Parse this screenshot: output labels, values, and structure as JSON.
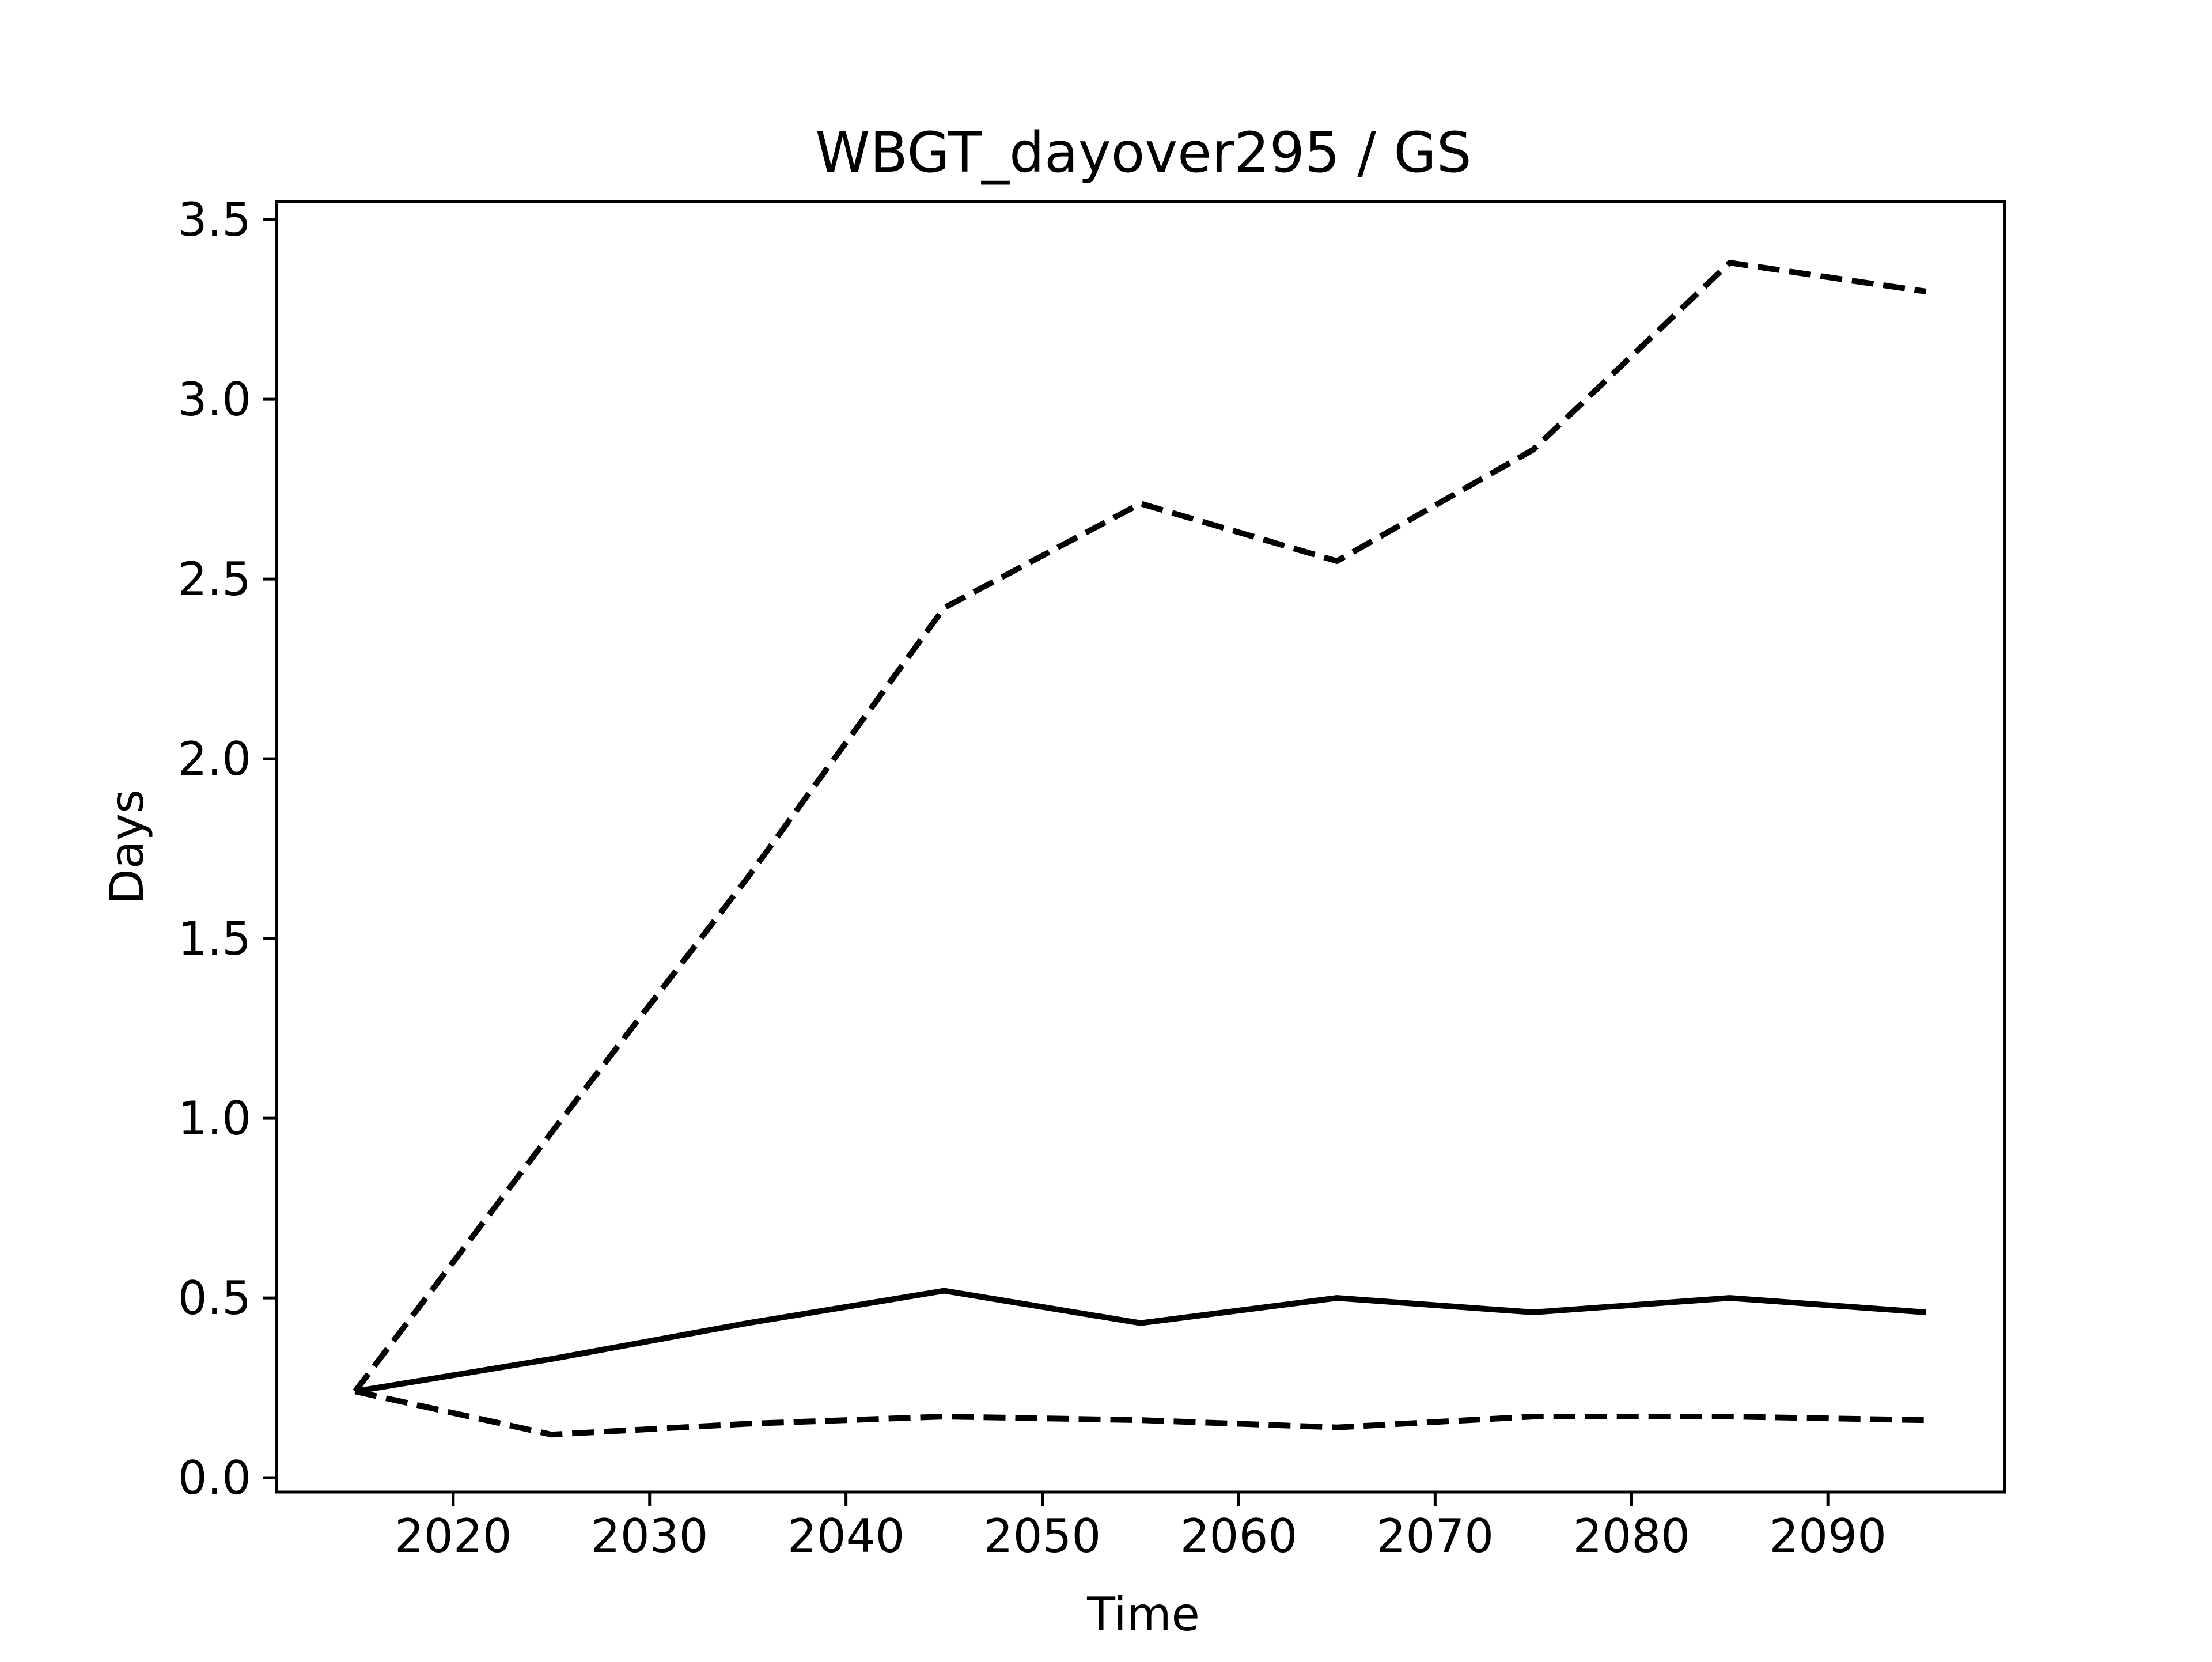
{
  "chart_data": {
    "type": "line",
    "title": "WBGT_dayover295 / GS",
    "xlabel": "Time",
    "ylabel": "Days",
    "xlim": [
      2011,
      2099
    ],
    "ylim": [
      -0.04,
      3.55
    ],
    "xticks": [
      2020,
      2030,
      2040,
      2050,
      2060,
      2070,
      2080,
      2090
    ],
    "yticks": [
      0.0,
      0.5,
      1.0,
      1.5,
      2.0,
      2.5,
      3.0,
      3.5
    ],
    "xtick_labels": [
      "2020",
      "2030",
      "2040",
      "2050",
      "2060",
      "2070",
      "2080",
      "2090"
    ],
    "ytick_labels": [
      "0.0",
      "0.5",
      "1.0",
      "1.5",
      "2.0",
      "2.5",
      "3.0",
      "3.5"
    ],
    "grid": false,
    "legend": null,
    "series": [
      {
        "style": "solid",
        "color": "#000000",
        "x": [
          2015,
          2025,
          2035,
          2045,
          2055,
          2065,
          2075,
          2085,
          2095
        ],
        "y": [
          0.24,
          0.33,
          0.43,
          0.52,
          0.43,
          0.5,
          0.46,
          0.5,
          0.46
        ]
      },
      {
        "style": "dashed",
        "color": "#000000",
        "x": [
          2015,
          2025,
          2035,
          2045,
          2055,
          2065,
          2075,
          2085,
          2095
        ],
        "y": [
          0.24,
          0.96,
          1.67,
          2.42,
          2.71,
          2.55,
          2.86,
          3.38,
          3.3
        ]
      },
      {
        "style": "dashed",
        "color": "#000000",
        "x": [
          2015,
          2025,
          2035,
          2045,
          2055,
          2065,
          2075,
          2085,
          2095
        ],
        "y": [
          0.24,
          0.12,
          0.15,
          0.17,
          0.16,
          0.14,
          0.17,
          0.17,
          0.16
        ]
      }
    ]
  }
}
